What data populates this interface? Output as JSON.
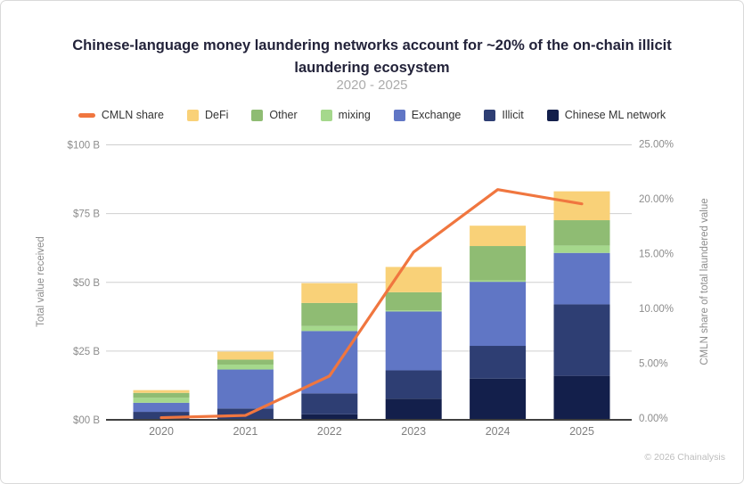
{
  "header": {
    "title": "Chinese-language money laundering networks account for ~20% of the on-chain illicit laundering ecosystem",
    "subtitle": "2020 - 2025"
  },
  "legend": {
    "items": [
      {
        "label": "CMLN share",
        "color": "#F0763F",
        "type": "line"
      },
      {
        "label": "DeFi",
        "color": "#F9D178",
        "type": "square"
      },
      {
        "label": "Other",
        "color": "#8FBC73",
        "type": "square"
      },
      {
        "label": "mixing",
        "color": "#A5D88C",
        "type": "square"
      },
      {
        "label": "Exchange",
        "color": "#6076C5",
        "type": "square"
      },
      {
        "label": "Illicit",
        "color": "#2E3E73",
        "type": "square"
      },
      {
        "label": "Chinese ML network",
        "color": "#131F4B",
        "type": "square"
      }
    ]
  },
  "chart_data": {
    "type": "bar",
    "subtype": "stacked-bars-with-line",
    "categories": [
      "2020",
      "2021",
      "2022",
      "2023",
      "2024",
      "2025"
    ],
    "series": [
      {
        "name": "Chinese ML network",
        "color": "#131F4B",
        "values": [
          0.1,
          0.3,
          2.0,
          7.7,
          15.0,
          16.0
        ]
      },
      {
        "name": "Illicit",
        "color": "#2E3E73",
        "values": [
          2.8,
          3.8,
          7.6,
          10.3,
          11.9,
          26.0
        ]
      },
      {
        "name": "Exchange",
        "color": "#6076C5",
        "values": [
          3.3,
          14.2,
          22.7,
          21.4,
          23.3,
          18.7
        ]
      },
      {
        "name": "mixing",
        "color": "#A5D88C",
        "values": [
          1.8,
          1.8,
          1.8,
          0.4,
          0.5,
          2.7
        ]
      },
      {
        "name": "Other",
        "color": "#8FBC73",
        "values": [
          1.8,
          1.8,
          8.4,
          6.6,
          12.5,
          9.2
        ]
      },
      {
        "name": "DeFi",
        "color": "#F9D178",
        "values": [
          1.0,
          2.9,
          7.2,
          9.2,
          7.4,
          10.5
        ]
      }
    ],
    "line_series": {
      "name": "CMLN share",
      "color": "#F0763F",
      "unit": "%",
      "values": [
        0.2,
        0.4,
        4.0,
        15.3,
        21.0,
        19.7
      ]
    },
    "left_axis": {
      "label": "Total value received",
      "tick_labels": [
        "$00 B",
        "$25 B",
        "$50 B",
        "$75 B",
        "$100 B"
      ],
      "tick_values": [
        0,
        25,
        50,
        75,
        100
      ],
      "range": [
        0,
        100
      ]
    },
    "right_axis": {
      "label": "CMLN share of total laundered value",
      "tick_labels": [
        "0.00%",
        "5.00%",
        "10.00%",
        "15.00%",
        "20.00%",
        "25.00%"
      ],
      "tick_values": [
        0,
        5,
        10,
        15,
        20,
        25
      ],
      "range": [
        0,
        25
      ]
    },
    "grid": true,
    "legend_position": "top",
    "colors": {
      "gridline": "#cfcfcf",
      "axis_line": "#404040",
      "tick_text": "#8c8c8c",
      "category_text": "#7f7f7f"
    }
  },
  "footer": {
    "credit": "© 2026 Chainalysis"
  }
}
